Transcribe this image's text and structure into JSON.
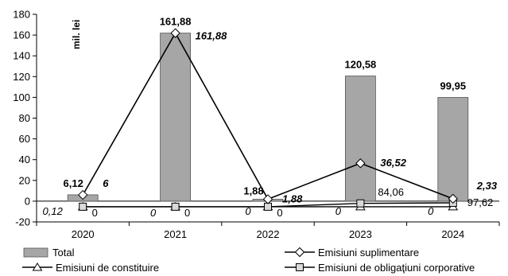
{
  "chart_data": {
    "type": "bar",
    "title": "",
    "xlabel": "",
    "ylabel": "mil. lei",
    "ylim": [
      -20,
      180
    ],
    "yticks": [
      -20,
      0,
      20,
      40,
      60,
      80,
      100,
      120,
      140,
      160,
      180
    ],
    "grid": false,
    "legend_placement": "bottom",
    "categories": [
      "2020",
      "2021",
      "2022",
      "2023",
      "2024"
    ],
    "series": [
      {
        "name": "Total",
        "kind": "bar",
        "values": [
          6.12,
          161.88,
          1.88,
          120.58,
          99.95
        ],
        "labels": [
          "6,12",
          "161,88",
          "1,88",
          "120,58",
          "99,95"
        ],
        "color": "#a6a6a6"
      },
      {
        "name": "Emisiuni suplimentare",
        "kind": "line",
        "marker": "diamond",
        "values": [
          6,
          161.88,
          1.88,
          36.52,
          2.33
        ],
        "labels": [
          "6",
          "161,88",
          "1,88",
          "36,52",
          "2,33"
        ],
        "color": "#000000"
      },
      {
        "name": "Emisiuni de constituire",
        "kind": "line",
        "marker": "triangle",
        "values": [
          0.12,
          0,
          0,
          0,
          0
        ],
        "labels": [
          "0,12",
          "0",
          "0",
          "0",
          "0"
        ],
        "color": "#000000"
      },
      {
        "name": "Emisiuni de obligaţiuni corporative",
        "kind": "line",
        "marker": "square",
        "values": [
          0,
          0,
          0,
          84.06,
          97.62
        ],
        "labels": [
          "0",
          "0",
          "0",
          "84,06",
          "97,62"
        ],
        "color": "#000000"
      }
    ]
  }
}
